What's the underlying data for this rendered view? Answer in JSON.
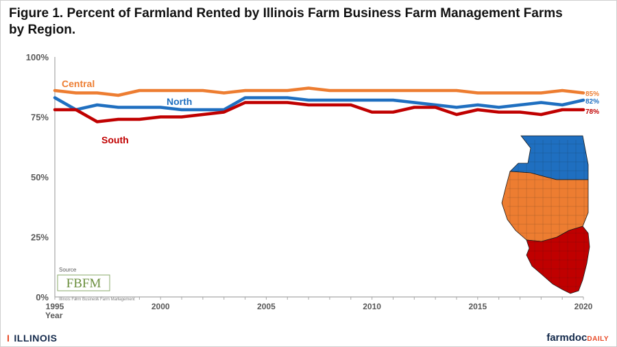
{
  "header": {
    "title_line1": "Figure 1.  Percent of Farmland Rented by Illinois Farm Business Farm Management Farms",
    "title_line2": "by Region."
  },
  "source": {
    "label": "Source",
    "logo_text": "FBFM",
    "org_text": "Illinois Farm Business Farm Management"
  },
  "footer": {
    "left_mark": "I",
    "left_text": "ILLINOIS",
    "right_text": "farmdoc",
    "right_suffix": "DAILY"
  },
  "colors": {
    "central": "#ed7d31",
    "north": "#1f6fc0",
    "south": "#c00000",
    "axis": "#a6a6a6",
    "text": "#595959"
  },
  "chart_data": {
    "type": "line",
    "xlabel": "Year",
    "ylabel": "",
    "x": [
      1995,
      1996,
      1997,
      1998,
      1999,
      2000,
      2001,
      2002,
      2003,
      2004,
      2005,
      2006,
      2007,
      2008,
      2009,
      2010,
      2011,
      2012,
      2013,
      2014,
      2015,
      2016,
      2017,
      2018,
      2019,
      2020
    ],
    "ylim": [
      0,
      100
    ],
    "xlim": [
      1995,
      2020
    ],
    "y_ticks": [
      "0%",
      "25%",
      "50%",
      "75%",
      "100%"
    ],
    "x_ticks": [
      "1995",
      "2000",
      "2005",
      "2010",
      "2015",
      "2020"
    ],
    "grid": false,
    "series": [
      {
        "name": "Central",
        "color": "#ed7d31",
        "values": [
          86,
          85,
          85,
          84,
          86,
          86,
          86,
          86,
          85,
          86,
          86,
          86,
          87,
          86,
          86,
          86,
          86,
          86,
          86,
          86,
          85,
          85,
          85,
          85,
          86,
          85
        ],
        "end_label": "85%"
      },
      {
        "name": "North",
        "color": "#1f6fc0",
        "values": [
          83,
          78,
          80,
          79,
          79,
          79,
          78,
          78,
          78,
          83,
          83,
          83,
          82,
          82,
          82,
          82,
          82,
          81,
          80,
          79,
          80,
          79,
          80,
          81,
          80,
          82
        ],
        "end_label": "82%"
      },
      {
        "name": "South",
        "color": "#c00000",
        "values": [
          78,
          78,
          73,
          74,
          74,
          75,
          75,
          76,
          77,
          81,
          81,
          81,
          80,
          80,
          80,
          77,
          77,
          79,
          79,
          76,
          78,
          77,
          77,
          76,
          78,
          78
        ],
        "end_label": "78%"
      }
    ],
    "map_regions": [
      "North",
      "Central",
      "South"
    ]
  }
}
